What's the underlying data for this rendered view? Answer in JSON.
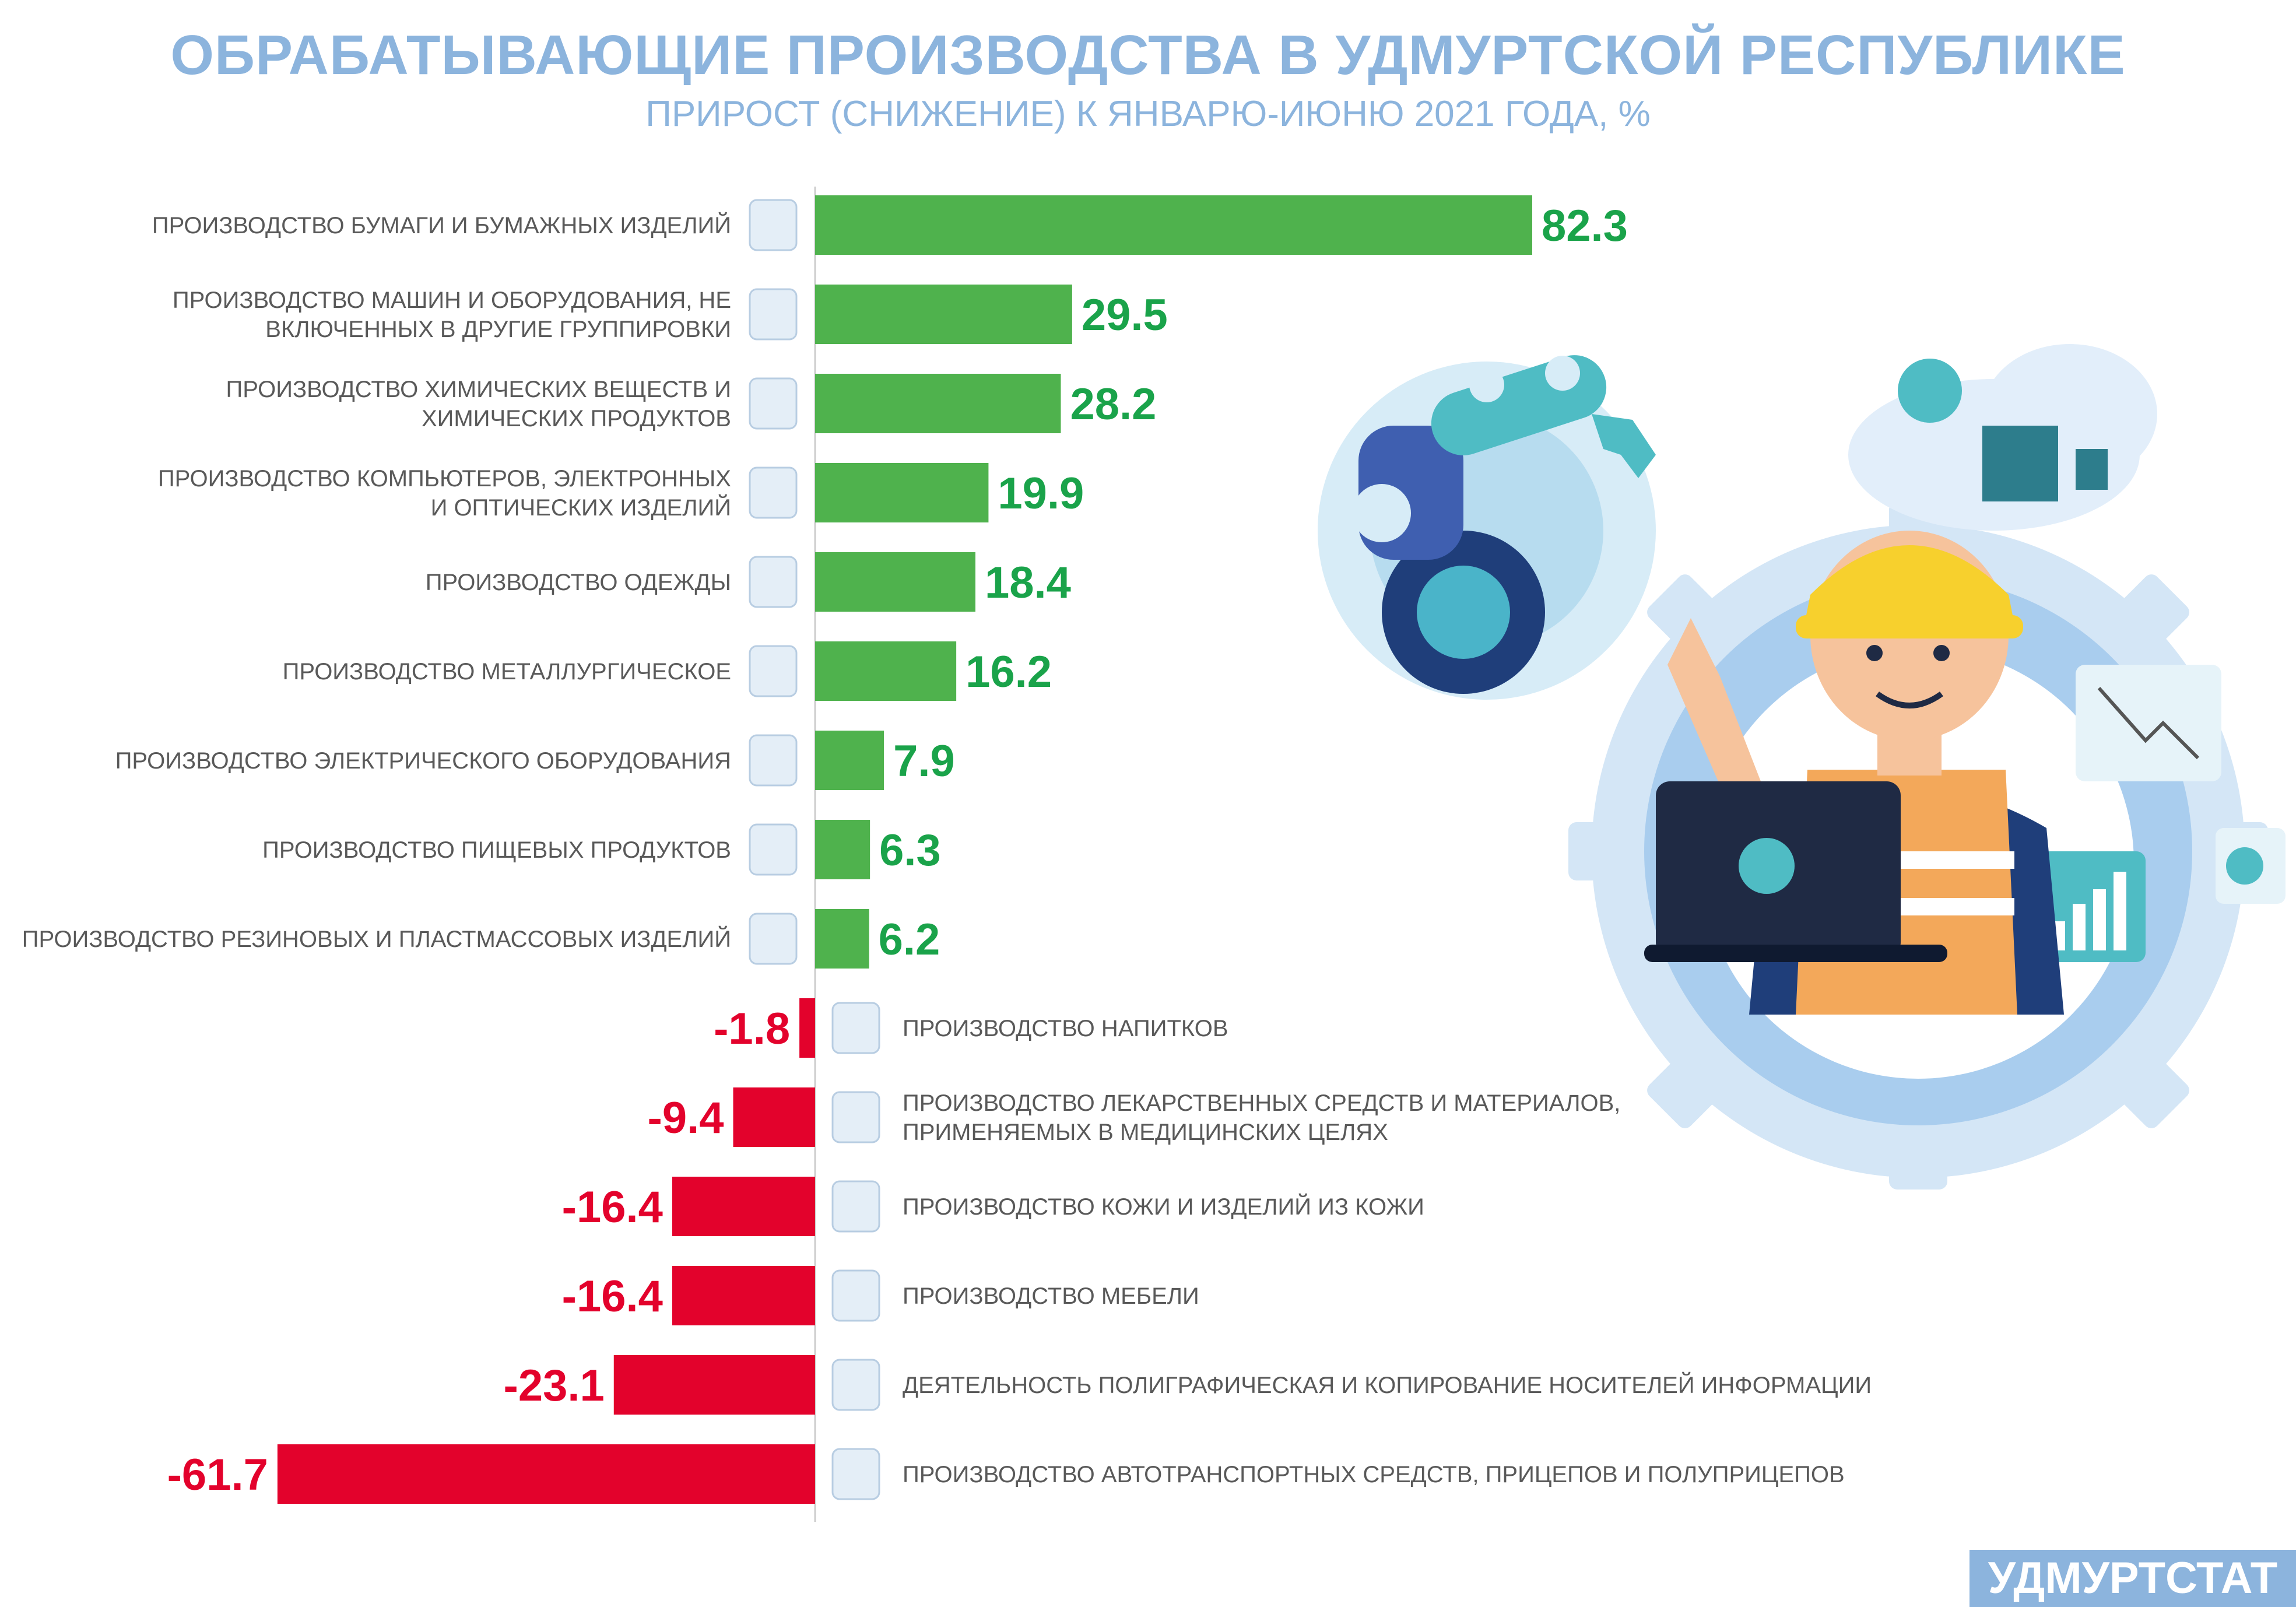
{
  "title": "ОБРАБАТЫВАЮЩИЕ ПРОИЗВОДСТВА В УДМУРТСКОЙ РЕСПУБЛИКЕ",
  "subtitle": "ПРИРОСТ (СНИЖЕНИЕ) К ЯНВАРЮ-ИЮНЮ 2021 ГОДА, %",
  "brand": "УДМУРТСТАТ",
  "colors": {
    "positive": "#4fb24d",
    "positive_label": "#1aa34a",
    "negative": "#e3022c",
    "title": "#8cb4dd",
    "label": "#595959"
  },
  "chart_data": {
    "type": "bar",
    "orientation": "horizontal",
    "title": "ОБРАБАТЫВАЮЩИЕ ПРОИЗВОДСТВА В УДМУРТСКОЙ РЕСПУБЛИКЕ",
    "subtitle": "ПРИРОСТ (СНИЖЕНИЕ) К ЯНВАРЮ-ИЮНЮ 2021 ГОДА, %",
    "grid": false,
    "legend": "none",
    "categories": [
      [
        "ПРОИЗВОДСТВО БУМАГИ И БУМАЖНЫХ ИЗДЕЛИЙ"
      ],
      [
        "ПРОИЗВОДСТВО МАШИН И ОБОРУДОВАНИЯ, НЕ",
        "ВКЛЮЧЕННЫХ В ДРУГИЕ ГРУППИРОВКИ"
      ],
      [
        "ПРОИЗВОДСТВО ХИМИЧЕСКИХ ВЕЩЕСТВ И",
        "ХИМИЧЕСКИХ ПРОДУКТОВ"
      ],
      [
        "ПРОИЗВОДСТВО КОМПЬЮТЕРОВ, ЭЛЕКТРОННЫХ",
        "И ОПТИЧЕСКИХ ИЗДЕЛИЙ"
      ],
      [
        "ПРОИЗВОДСТВО ОДЕЖДЫ"
      ],
      [
        "ПРОИЗВОДСТВО МЕТАЛЛУРГИЧЕСКОЕ"
      ],
      [
        "ПРОИЗВОДСТВО ЭЛЕКТРИЧЕСКОГО ОБОРУДОВАНИЯ"
      ],
      [
        "ПРОИЗВОДСТВО ПИЩЕВЫХ ПРОДУКТОВ"
      ],
      [
        "ПРОИЗВОДСТВО РЕЗИНОВЫХ И ПЛАСТМАССОВЫХ ИЗДЕЛИЙ"
      ],
      [
        "ПРОИЗВОДСТВО НАПИТКОВ"
      ],
      [
        "ПРОИЗВОДСТВО ЛЕКАРСТВЕННЫХ СРЕДСТВ И МАТЕРИАЛОВ,",
        "ПРИМЕНЯЕМЫХ В МЕДИЦИНСКИХ ЦЕЛЯХ"
      ],
      [
        "ПРОИЗВОДСТВО КОЖИ И ИЗДЕЛИЙ ИЗ КОЖИ"
      ],
      [
        "ПРОИЗВОДСТВО МЕБЕЛИ"
      ],
      [
        "ДЕЯТЕЛЬНОСТЬ ПОЛИГРАФИЧЕСКАЯ И КОПИРОВАНИЕ НОСИТЕЛЕЙ ИНФОРМАЦИИ"
      ],
      [
        "ПРОИЗВОДСТВО АВТОТРАНСПОРТНЫХ СРЕДСТВ, ПРИЦЕПОВ И ПОЛУПРИЦЕПОВ"
      ]
    ],
    "values": [
      82.3,
      29.5,
      28.2,
      19.9,
      18.4,
      16.2,
      7.9,
      6.3,
      6.2,
      -1.8,
      -9.4,
      -16.4,
      -16.4,
      -23.1,
      -61.7
    ],
    "value_labels": [
      "82.3",
      "29.5",
      "28.2",
      "19.9",
      "18.4",
      "16.2",
      "7.9",
      "6.3",
      "6.2",
      "-1.8",
      "-9.4",
      "-16.4",
      "-16.4",
      "-23.1",
      "-61.7"
    ],
    "icons": [
      "paper-book-icon",
      "robot-arm-icon",
      "test-tube-icon",
      "monitor-icon",
      "clothes-icon",
      "metal-bucket-icon",
      "drill-icon",
      "ice-cream-icon",
      "rubber-boot-icon",
      "water-bottle-icon",
      "medicine-bottle-icon",
      "leather-hide-icon",
      "wardrobe-icon",
      "photo-print-icon",
      "car-icon"
    ],
    "xlim": [
      -61.7,
      82.3
    ]
  }
}
